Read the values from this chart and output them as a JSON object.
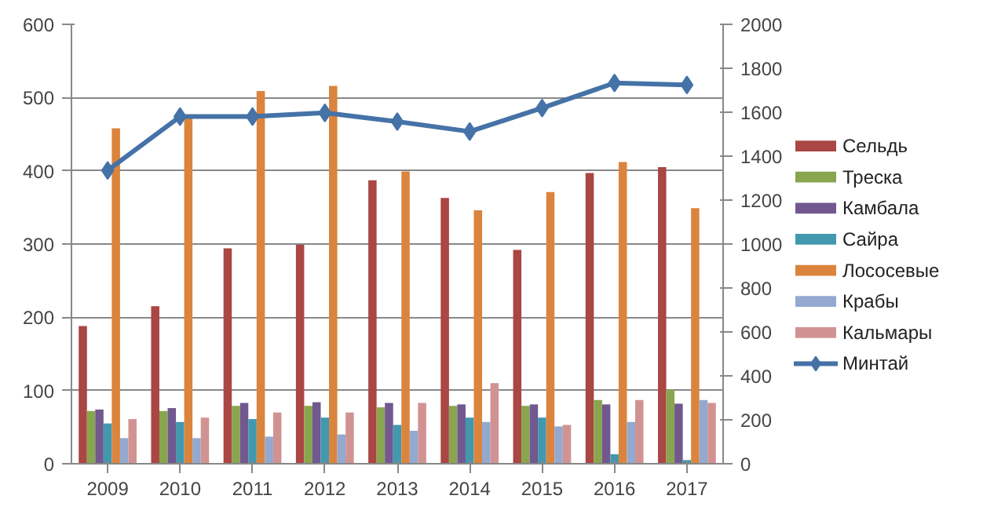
{
  "chart_data": {
    "type": "bar",
    "categories": [
      "2009",
      "2010",
      "2011",
      "2012",
      "2013",
      "2014",
      "2015",
      "2016",
      "2017"
    ],
    "series": [
      {
        "name": "Сельдь",
        "color": "#aa4643",
        "values": [
          188,
          215,
          294,
          299,
          387,
          363,
          292,
          397,
          405
        ]
      },
      {
        "name": "Треска",
        "color": "#89a54e",
        "values": [
          72,
          72,
          79,
          79,
          77,
          79,
          79,
          87,
          101
        ]
      },
      {
        "name": "Камбала",
        "color": "#71588f",
        "values": [
          74,
          76,
          83,
          84,
          83,
          81,
          81,
          81,
          82
        ]
      },
      {
        "name": "Сайра",
        "color": "#4198af",
        "values": [
          55,
          57,
          61,
          63,
          53,
          63,
          63,
          13,
          5
        ]
      },
      {
        "name": "Лососевые",
        "color": "#db843d",
        "values": [
          458,
          472,
          509,
          516,
          399,
          346,
          371,
          412,
          349
        ]
      },
      {
        "name": "Крабы",
        "color": "#93a9cf",
        "values": [
          35,
          35,
          37,
          40,
          45,
          57,
          51,
          57,
          87
        ]
      },
      {
        "name": "Кальмары",
        "color": "#d19392",
        "values": [
          61,
          63,
          70,
          70,
          83,
          110,
          53,
          87,
          83
        ]
      },
      {
        "name": "Минтай",
        "color": "#4572a7",
        "type": "line",
        "axis": "y2",
        "marker": "diamond",
        "values": [
          1335,
          1580,
          1580,
          1597,
          1557,
          1512,
          1619,
          1733,
          1724
        ]
      }
    ],
    "ylim": [
      0,
      600
    ],
    "yticks": [
      0,
      100,
      200,
      300,
      400,
      500,
      600
    ],
    "y2lim": [
      0,
      2000
    ],
    "y2ticks": [
      0,
      200,
      400,
      600,
      800,
      1000,
      1200,
      1400,
      1600,
      1800,
      2000
    ],
    "grid": "y",
    "legend": "right"
  }
}
